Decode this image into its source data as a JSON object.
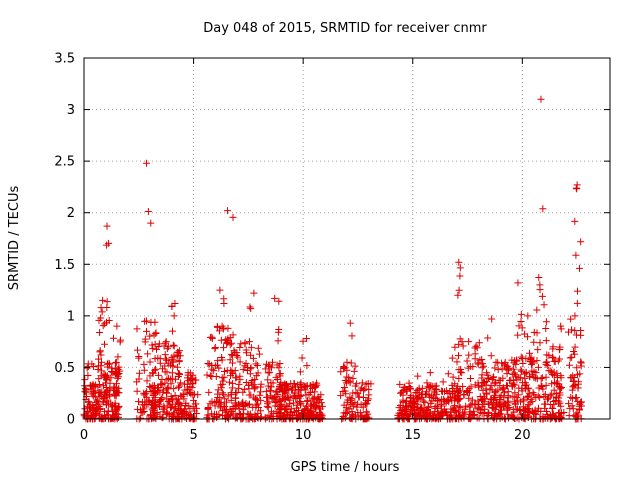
{
  "chart_data": {
    "type": "scatter",
    "title": "Day 048 of 2015, SRMTID for receiver cnmr",
    "xlabel": "GPS time / hours",
    "ylabel": "SRMTID / TECUs",
    "xlim": [
      0,
      24
    ],
    "ylim": [
      0,
      3.5
    ],
    "xticks": [
      0,
      5,
      10,
      15,
      20
    ],
    "yticks": [
      0,
      0.5,
      1,
      1.5,
      2,
      2.5,
      3,
      3.5
    ],
    "xtick_labels": [
      "0",
      "5",
      "10",
      "15",
      "20"
    ],
    "ytick_labels": [
      "0",
      "0.5",
      "1",
      "1.5",
      "2",
      "2.5",
      "3",
      "3.5"
    ],
    "grid": true,
    "marker": "+",
    "series_color": "#e00000",
    "series": [
      {
        "name": "SRMTID",
        "clusters": [
          {
            "x": [
              0.0,
              1.6
            ],
            "ymax": 0.55,
            "n": 170,
            "zeros": 2
          },
          {
            "x": [
              0.6,
              1.1
            ],
            "ymax": 1.15,
            "n": 30,
            "zeros": 1
          },
          {
            "x": [
              0.9,
              1.2
            ],
            "ymax": 1.87,
            "n": 12,
            "zeros": 0
          },
          {
            "x": [
              1.3,
              1.7
            ],
            "ymax": 0.9,
            "n": 20,
            "zeros": 0
          },
          {
            "x": [
              2.4,
              3.3
            ],
            "ymax": 0.95,
            "n": 60,
            "zeros": 2
          },
          {
            "x": [
              2.5,
              3.2
            ],
            "ymax": 2.48,
            "n": 12,
            "zeros": 0
          },
          {
            "x": [
              3.1,
              4.4
            ],
            "ymax": 0.75,
            "n": 140,
            "zeros": 1
          },
          {
            "x": [
              4.0,
              4.3
            ],
            "ymax": 1.12,
            "n": 14,
            "zeros": 0
          },
          {
            "x": [
              4.3,
              5.2
            ],
            "ymax": 0.45,
            "n": 80,
            "zeros": 2
          },
          {
            "x": [
              5.6,
              7.0
            ],
            "ymax": 0.9,
            "n": 110,
            "zeros": 3
          },
          {
            "x": [
              6.0,
              6.4
            ],
            "ymax": 1.25,
            "n": 10,
            "zeros": 0
          },
          {
            "x": [
              6.3,
              6.8
            ],
            "ymax": 2.02,
            "n": 20,
            "zeros": 0
          },
          {
            "x": [
              7.0,
              8.1
            ],
            "ymax": 0.75,
            "n": 90,
            "zeros": 1
          },
          {
            "x": [
              7.5,
              8.0
            ],
            "ymax": 1.22,
            "n": 12,
            "zeros": 0
          },
          {
            "x": [
              8.2,
              9.0
            ],
            "ymax": 0.55,
            "n": 60,
            "zeros": 2
          },
          {
            "x": [
              8.5,
              8.9
            ],
            "ymax": 1.17,
            "n": 8,
            "zeros": 0
          },
          {
            "x": [
              8.9,
              10.9
            ],
            "ymax": 0.35,
            "n": 200,
            "zeros": 6
          },
          {
            "x": [
              9.6,
              10.7
            ],
            "ymax": 0.78,
            "n": 20,
            "zeros": 0
          },
          {
            "x": [
              11.7,
              12.3
            ],
            "ymax": 0.55,
            "n": 40,
            "zeros": 1
          },
          {
            "x": [
              11.9,
              12.4
            ],
            "ymax": 0.93,
            "n": 12,
            "zeros": 0
          },
          {
            "x": [
              12.3,
              13.1
            ],
            "ymax": 0.35,
            "n": 45,
            "zeros": 2
          },
          {
            "x": [
              14.3,
              17.0
            ],
            "ymax": 0.35,
            "n": 230,
            "zeros": 5
          },
          {
            "x": [
              14.8,
              16.8
            ],
            "ymax": 0.45,
            "n": 30,
            "zeros": 0
          },
          {
            "x": [
              16.8,
              18.3
            ],
            "ymax": 0.75,
            "n": 120,
            "zeros": 1
          },
          {
            "x": [
              17.0,
              17.2
            ],
            "ymax": 1.52,
            "n": 14,
            "zeros": 0
          },
          {
            "x": [
              18.2,
              19.4
            ],
            "ymax": 0.55,
            "n": 100,
            "zeros": 1
          },
          {
            "x": [
              18.4,
              18.8
            ],
            "ymax": 0.97,
            "n": 8,
            "zeros": 0
          },
          {
            "x": [
              19.3,
              20.6
            ],
            "ymax": 0.6,
            "n": 100,
            "zeros": 2
          },
          {
            "x": [
              19.6,
              20.0
            ],
            "ymax": 1.32,
            "n": 12,
            "zeros": 0
          },
          {
            "x": [
              20.0,
              20.5
            ],
            "ymax": 1.0,
            "n": 20,
            "zeros": 0
          },
          {
            "x": [
              20.5,
              21.1
            ],
            "ymax": 1.3,
            "n": 40,
            "zeros": 1
          },
          {
            "x": [
              20.75,
              20.95
            ],
            "ymax": 3.1,
            "n": 6,
            "zeros": 0
          },
          {
            "x": [
              21.0,
              21.8
            ],
            "ymax": 0.7,
            "n": 80,
            "zeros": 2
          },
          {
            "x": [
              21.6,
              21.9
            ],
            "ymax": 0.9,
            "n": 8,
            "zeros": 0
          },
          {
            "x": [
              22.1,
              22.7
            ],
            "ymax": 1.0,
            "n": 50,
            "zeros": 2
          },
          {
            "x": [
              22.3,
              22.7
            ],
            "ymax": 2.27,
            "n": 18,
            "zeros": 0
          }
        ]
      }
    ]
  }
}
